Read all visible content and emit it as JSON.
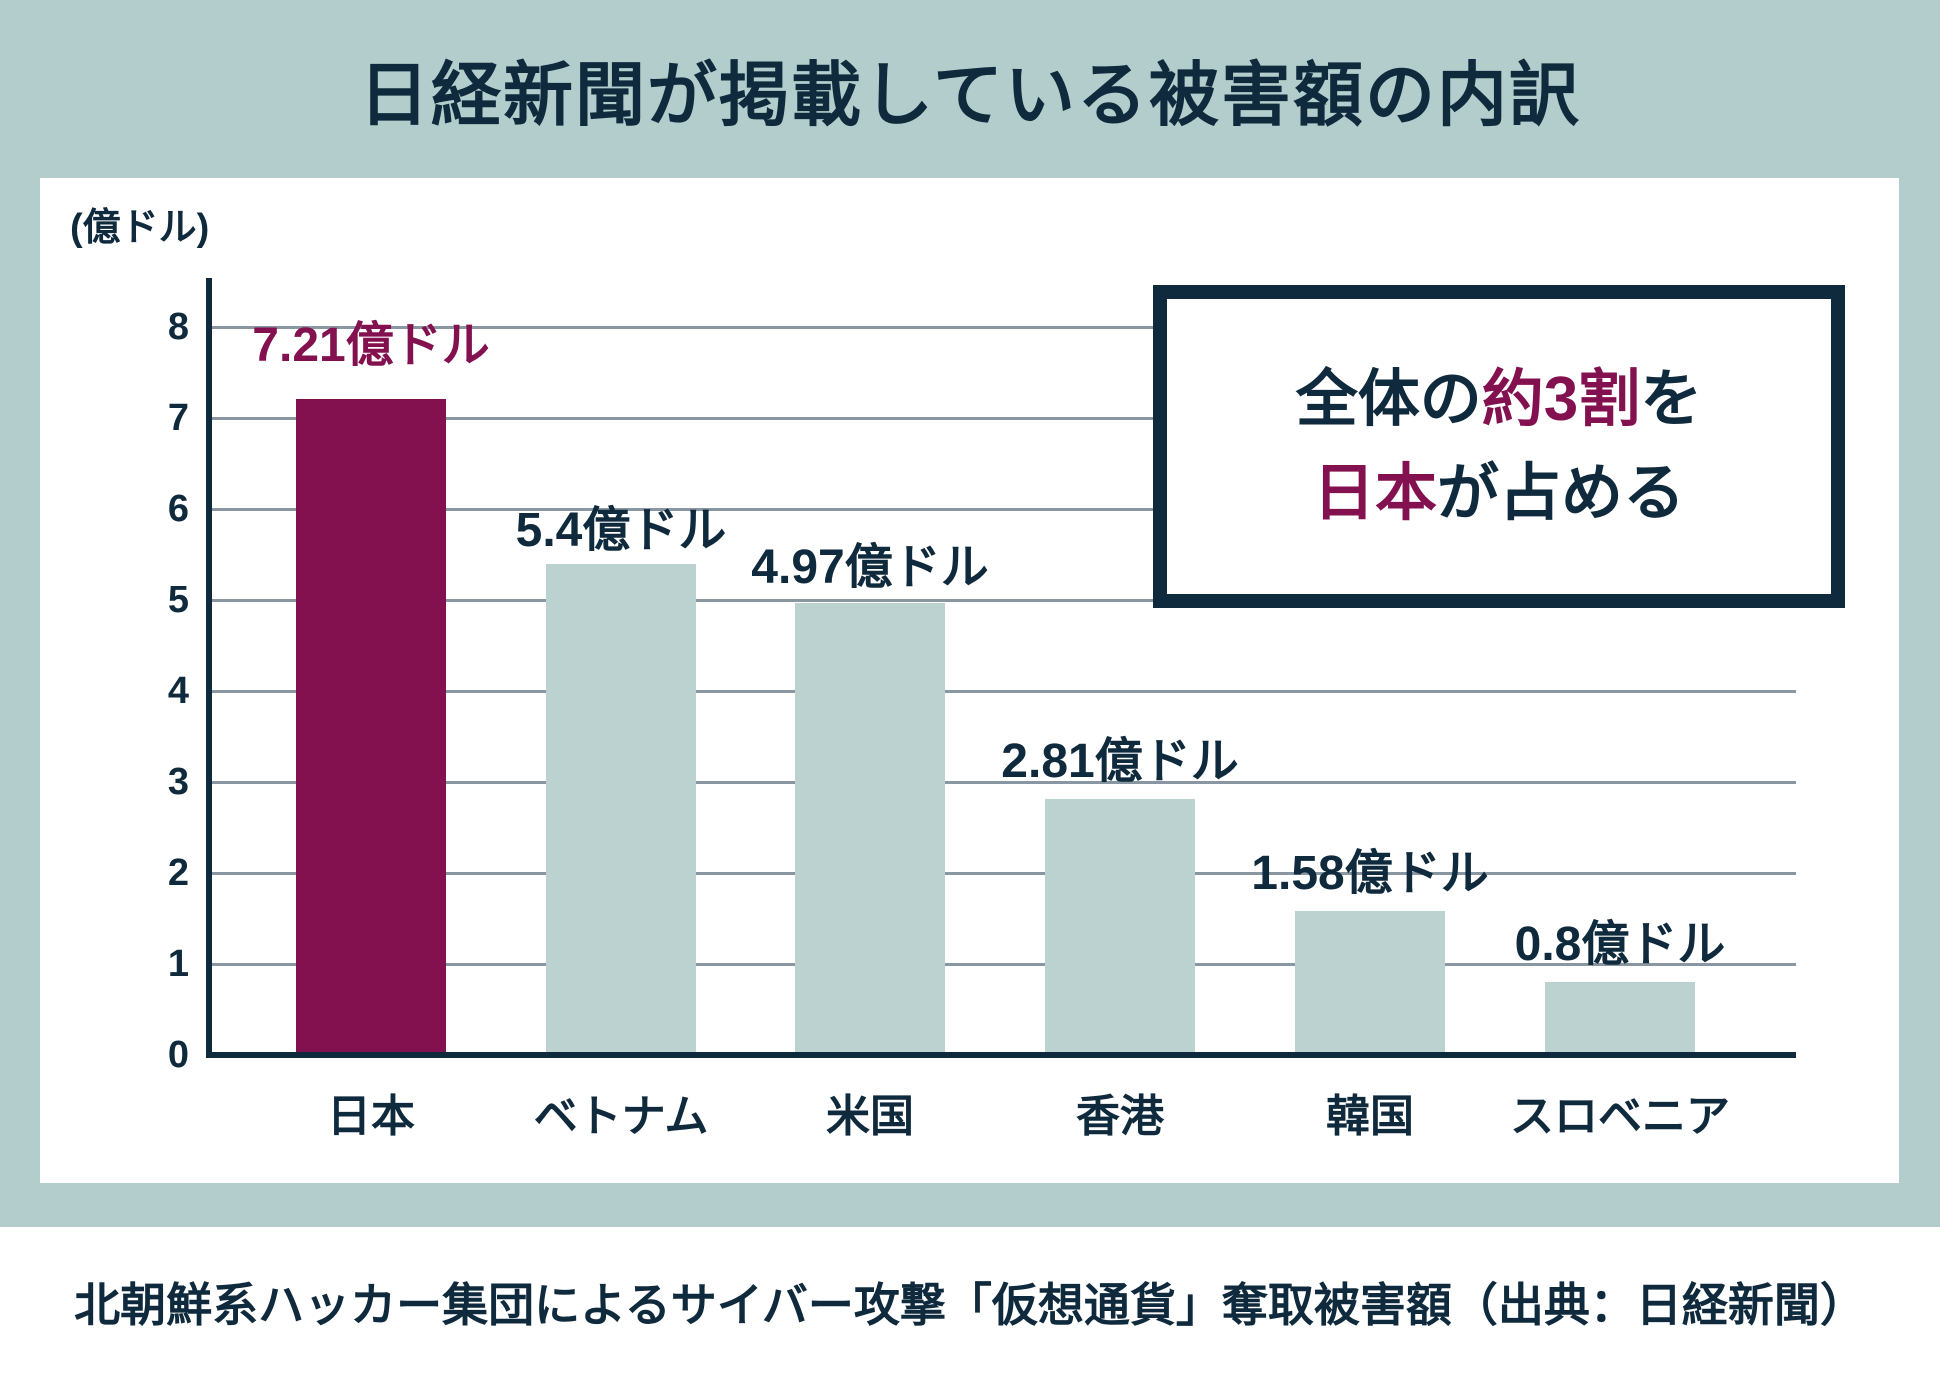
{
  "page": {
    "title": "日経新聞が掲載している被害額の内訳",
    "caption": "北朝鮮系ハッカー集団によるサイバー攻撃「仮想通貨」奪取被害額（出典：日経新聞）"
  },
  "colors": {
    "background": "#b3cdcc",
    "panel": "#ffffff",
    "ink": "#0f2a3c",
    "accent": "#84114f",
    "bar": "#bcd2d1",
    "grid": "#8997a2"
  },
  "chart_data": {
    "type": "bar",
    "title": "日経新聞が掲載している被害額の内訳",
    "unit_label": "(億ドル)",
    "categories": [
      "日本",
      "ベトナム",
      "米国",
      "香港",
      "韓国",
      "スロベニア"
    ],
    "values": [
      7.21,
      5.4,
      4.97,
      2.81,
      1.58,
      0.8
    ],
    "value_labels": [
      "7.21億ドル",
      "5.4億ドル",
      "4.97億ドル",
      "2.81億ドル",
      "1.58億ドル",
      "0.8億ドル"
    ],
    "highlight_index": 0,
    "highlight_color": "#84114f",
    "bar_color": "#bcd2d1",
    "ylim": [
      0,
      8
    ],
    "yticks": [
      0,
      1,
      2,
      3,
      4,
      5,
      6,
      7,
      8
    ],
    "grid": true,
    "legend": false,
    "annotation": {
      "lines": [
        [
          {
            "text": "全体の",
            "accent": false
          },
          {
            "text": "約3割",
            "accent": true
          },
          {
            "text": "を",
            "accent": false
          }
        ],
        [
          {
            "text": "日本",
            "accent": true
          },
          {
            "text": "が占める",
            "accent": false
          }
        ]
      ]
    },
    "caption": "北朝鮮系ハッカー集団によるサイバー攻撃「仮想通貨」奪取被害額（出典：日経新聞）"
  }
}
